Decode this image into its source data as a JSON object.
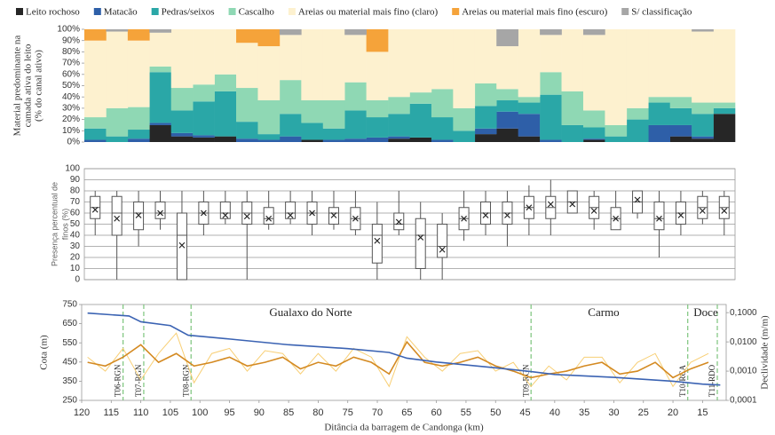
{
  "chart_data": [
    {
      "type": "bar",
      "stacked": true,
      "legend": "top",
      "ylabel": [
        "Material predominante na",
        "camada ativa do leito",
        "(% do canal ativo)"
      ],
      "categories": [
        null,
        null,
        null,
        null,
        null,
        null,
        null,
        null,
        null,
        null,
        null,
        null,
        null,
        null,
        null,
        null,
        null,
        null,
        null,
        null,
        null,
        null,
        null,
        null,
        null,
        null,
        null,
        null,
        null,
        null
      ],
      "ylim": [
        0,
        100
      ],
      "yticks": [
        {
          "value": 0,
          "label": "0%"
        },
        {
          "value": 10,
          "label": "10%"
        },
        {
          "value": 20,
          "label": "20%"
        },
        {
          "value": 30,
          "label": "30%"
        },
        {
          "value": 40,
          "label": "40%"
        },
        {
          "value": 50,
          "label": "50%"
        },
        {
          "value": 60,
          "label": "60%"
        },
        {
          "value": 70,
          "label": "70%"
        },
        {
          "value": 80,
          "label": "80%"
        },
        {
          "value": 90,
          "label": "90%"
        },
        {
          "value": 100,
          "label": "100%"
        }
      ],
      "series": [
        {
          "name": "Leito rochoso",
          "color": "#262626",
          "values": [
            0,
            0,
            0,
            15,
            5,
            4,
            5,
            0,
            0,
            0,
            2,
            0,
            0,
            0,
            3,
            4,
            0,
            0,
            7,
            12,
            5,
            0,
            0,
            2,
            0,
            0,
            0,
            5,
            3,
            25
          ]
        },
        {
          "name": "Matacão",
          "color": "#2e5fa8",
          "values": [
            2,
            0,
            3,
            2,
            3,
            2,
            0,
            3,
            2,
            5,
            0,
            2,
            3,
            4,
            2,
            0,
            2,
            0,
            5,
            15,
            20,
            2,
            0,
            1,
            0,
            0,
            15,
            10,
            2,
            0
          ]
        },
        {
          "name": "Pedras/seixos",
          "color": "#2aa7a7",
          "values": [
            10,
            5,
            8,
            45,
            20,
            30,
            40,
            15,
            5,
            20,
            15,
            10,
            25,
            18,
            20,
            30,
            20,
            10,
            20,
            10,
            10,
            40,
            15,
            10,
            5,
            20,
            20,
            15,
            20,
            5
          ]
        },
        {
          "name": "Cascalho",
          "color": "#8fd8b4",
          "values": [
            10,
            25,
            20,
            5,
            20,
            15,
            15,
            30,
            30,
            30,
            20,
            25,
            25,
            15,
            15,
            10,
            25,
            20,
            20,
            10,
            5,
            20,
            30,
            15,
            10,
            10,
            5,
            10,
            10,
            5
          ]
        },
        {
          "name": "Areias ou material mais fino (claro)",
          "color": "#fdf1cf",
          "values": [
            68,
            68,
            59,
            30,
            52,
            49,
            40,
            40,
            48,
            40,
            63,
            63,
            42,
            43,
            60,
            56,
            53,
            70,
            48,
            38,
            60,
            33,
            55,
            67,
            85,
            70,
            60,
            60,
            63,
            65
          ]
        },
        {
          "name": "Areias ou material mais fino (escuro)",
          "color": "#f5a33a",
          "values": [
            10,
            0,
            10,
            0,
            0,
            0,
            0,
            12,
            15,
            0,
            0,
            0,
            0,
            20,
            0,
            0,
            0,
            0,
            0,
            0,
            0,
            0,
            0,
            0,
            0,
            0,
            0,
            0,
            0,
            0
          ]
        },
        {
          "name": "S/ classificação",
          "color": "#a6a6a6",
          "values": [
            0,
            2,
            0,
            3,
            0,
            0,
            0,
            0,
            0,
            5,
            0,
            0,
            5,
            0,
            0,
            0,
            0,
            0,
            0,
            15,
            0,
            5,
            0,
            5,
            0,
            0,
            0,
            0,
            2,
            0
          ]
        }
      ]
    },
    {
      "type": "box",
      "grid": true,
      "ylabel": [
        "Presença percentual de",
        "finos (%)"
      ],
      "ylim": [
        0,
        100
      ],
      "yticks": [
        0,
        10,
        20,
        30,
        40,
        50,
        60,
        70,
        80,
        90,
        100
      ],
      "min": [
        40,
        0,
        30,
        45,
        0,
        40,
        50,
        0,
        45,
        50,
        40,
        45,
        40,
        0,
        40,
        0,
        0,
        35,
        40,
        30,
        40,
        40,
        60,
        45,
        45,
        55,
        20,
        40,
        50,
        40
      ],
      "q1": [
        55,
        40,
        45,
        55,
        0,
        50,
        55,
        50,
        50,
        55,
        50,
        50,
        45,
        15,
        45,
        10,
        20,
        45,
        50,
        50,
        55,
        55,
        60,
        55,
        45,
        60,
        45,
        50,
        55,
        55
      ],
      "median": [
        65,
        60,
        60,
        60,
        40,
        60,
        60,
        60,
        55,
        60,
        60,
        60,
        55,
        40,
        50,
        40,
        30,
        55,
        60,
        60,
        65,
        65,
        70,
        65,
        55,
        70,
        55,
        60,
        65,
        65
      ],
      "q3": [
        75,
        75,
        70,
        70,
        60,
        70,
        70,
        70,
        65,
        70,
        70,
        65,
        65,
        50,
        60,
        55,
        50,
        65,
        70,
        70,
        75,
        75,
        80,
        75,
        65,
        80,
        70,
        70,
        75,
        75
      ],
      "max": [
        80,
        80,
        80,
        80,
        80,
        80,
        80,
        80,
        80,
        80,
        80,
        80,
        80,
        70,
        80,
        70,
        60,
        80,
        80,
        80,
        85,
        90,
        80,
        80,
        80,
        80,
        80,
        80,
        80,
        80
      ],
      "mean": [
        63,
        55,
        58,
        60,
        31,
        60,
        58,
        57,
        55,
        58,
        60,
        58,
        55,
        35,
        52,
        38,
        27,
        55,
        58,
        58,
        65,
        68,
        68,
        62,
        55,
        72,
        55,
        58,
        62,
        62
      ]
    },
    {
      "type": "line",
      "y2log": true,
      "ylabel": "Cota (m)",
      "y2label": "Declividade (m/m)",
      "xlabel": "Ditância da barragem de Candonga (km)",
      "regions": [
        "Gualaxo do Norte",
        "Carmo",
        "Doce"
      ],
      "markers": [
        {
          "x": 113,
          "label": "T06-RGN"
        },
        {
          "x": 109.5,
          "label": "T07-RGN"
        },
        {
          "x": 101.5,
          "label": "T08-RGN"
        },
        {
          "x": 44,
          "label": "T09-RGN"
        },
        {
          "x": 17.5,
          "label": "T10-RCA"
        },
        {
          "x": 12.5,
          "label": "T11-RDO"
        }
      ],
      "xlim": [
        120,
        11
      ],
      "xticks": [
        120,
        115,
        110,
        105,
        100,
        95,
        90,
        85,
        80,
        75,
        70,
        65,
        60,
        55,
        50,
        45,
        40,
        35,
        30,
        25,
        20,
        15
      ],
      "ylim": [
        250,
        750
      ],
      "yticks": [
        250,
        350,
        450,
        550,
        650,
        750
      ],
      "y2lim": [
        0.0001,
        0.19
      ],
      "y2ticks": [
        {
          "value": 0.0001,
          "label": "0,0001"
        },
        {
          "value": 0.001,
          "label": "0,0010"
        },
        {
          "value": 0.01,
          "label": "0,0100"
        },
        {
          "value": 0.1,
          "label": "0,1000"
        }
      ],
      "series": [
        {
          "color": "#f8cf75",
          "width": 1,
          "axis": "y2",
          "x": [
            119,
            116,
            113,
            110,
            107,
            104,
            101,
            98,
            95,
            92,
            89,
            86,
            83,
            80,
            77,
            74,
            71,
            68,
            65,
            62,
            59,
            56,
            53,
            50,
            47,
            44,
            41,
            38,
            35,
            32,
            29,
            26,
            23,
            20,
            17,
            14
          ],
          "values": [
            0.003,
            0.001,
            0.006,
            0.0005,
            0.004,
            0.02,
            0.0004,
            0.004,
            0.006,
            0.001,
            0.005,
            0.004,
            0.0008,
            0.004,
            0.001,
            0.006,
            0.003,
            0.0003,
            0.015,
            0.003,
            0.001,
            0.004,
            0.005,
            0.001,
            0.002,
            0.0003,
            0.0015,
            0.0005,
            0.003,
            0.003,
            0.0004,
            0.002,
            0.004,
            0.0003,
            0.002,
            0.004
          ]
        },
        {
          "color": "#d48a22",
          "width": 1.6,
          "axis": "y2",
          "x": [
            119,
            116,
            113,
            110,
            107,
            104,
            101,
            98,
            95,
            92,
            89,
            86,
            83,
            80,
            77,
            74,
            71,
            68,
            65,
            62,
            59,
            56,
            53,
            50,
            47,
            44,
            41,
            38,
            35,
            32,
            29,
            26,
            23,
            20,
            17,
            14
          ],
          "values": [
            0.002,
            0.0015,
            0.003,
            0.008,
            0.002,
            0.004,
            0.0015,
            0.002,
            0.003,
            0.0015,
            0.002,
            0.003,
            0.0012,
            0.002,
            0.0015,
            0.003,
            0.002,
            0.0008,
            0.01,
            0.002,
            0.0015,
            0.002,
            0.003,
            0.0015,
            0.001,
            0.0006,
            0.0008,
            0.001,
            0.0015,
            0.002,
            0.0008,
            0.001,
            0.002,
            0.0006,
            0.0012,
            0.002
          ]
        },
        {
          "color": "#3b63b3",
          "width": 1.6,
          "x": [
            119,
            112,
            110,
            105,
            102,
            95,
            85,
            75,
            68,
            65,
            60,
            50,
            44,
            40,
            30,
            20,
            15,
            12
          ],
          "values": [
            705,
            690,
            660,
            640,
            590,
            570,
            540,
            520,
            500,
            470,
            450,
            420,
            400,
            385,
            370,
            350,
            335,
            330
          ]
        }
      ]
    }
  ]
}
